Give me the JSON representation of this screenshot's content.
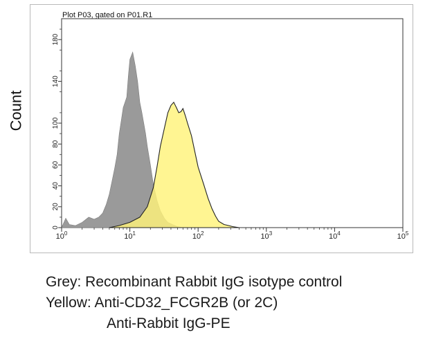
{
  "chart_data": {
    "type": "area",
    "title": "Plot P03, gated on P01.R1",
    "xlabel": "",
    "ylabel": "Count",
    "xscale": "log",
    "xlim": [
      1,
      100000
    ],
    "ylim": [
      0,
      200
    ],
    "xticks": [
      1,
      10,
      100,
      1000,
      10000,
      100000
    ],
    "xtick_labels": [
      {
        "base": "10",
        "exp": "0"
      },
      {
        "base": "10",
        "exp": "1"
      },
      {
        "base": "10",
        "exp": "2"
      },
      {
        "base": "10",
        "exp": "3"
      },
      {
        "base": "10",
        "exp": "4"
      },
      {
        "base": "10",
        "exp": "5"
      }
    ],
    "yticks": [
      0,
      20,
      40,
      60,
      80,
      100,
      140,
      180
    ],
    "ytick_labels": [
      "0",
      "20",
      "40",
      "60",
      "80",
      "100",
      "140",
      "180"
    ],
    "grid": false,
    "series": [
      {
        "name": "Grey",
        "color": "#9a9a9a",
        "x": [
          1,
          1.15,
          1.3,
          1.6,
          2,
          2.5,
          3,
          3.5,
          4,
          4.5,
          5,
          5.5,
          6,
          6.5,
          7,
          7.5,
          8,
          8.5,
          9,
          9.5,
          10,
          11,
          12,
          13,
          14,
          15,
          16,
          17,
          18,
          20,
          22,
          25,
          28,
          32,
          36,
          42,
          50,
          60
        ],
        "y": [
          0,
          9,
          3,
          2,
          5,
          10,
          8,
          10,
          14,
          22,
          32,
          45,
          57,
          70,
          90,
          103,
          115,
          120,
          125,
          145,
          161,
          168,
          155,
          140,
          120,
          110,
          100,
          90,
          78,
          60,
          42,
          26,
          16,
          9,
          5,
          3,
          1,
          0
        ]
      },
      {
        "name": "Yellow",
        "color": "#fff37a",
        "x": [
          5,
          7,
          10,
          14,
          18,
          22,
          25,
          28,
          32,
          36,
          40,
          44,
          48,
          52,
          56,
          60,
          65,
          70,
          80,
          90,
          100,
          120,
          140,
          160,
          180,
          200,
          240,
          280,
          320,
          400
        ],
        "y": [
          0,
          2,
          5,
          10,
          20,
          38,
          58,
          78,
          95,
          110,
          117,
          120,
          115,
          110,
          111,
          114,
          107,
          100,
          88,
          72,
          58,
          42,
          28,
          18,
          11,
          6,
          3,
          2,
          1,
          0
        ]
      }
    ],
    "legend": [
      "Grey: Recombinant Rabbit IgG isotype control",
      "Yellow: Anti-CD32_FCGR2B (or 2C)",
      "Anti-Rabbit IgG-PE"
    ]
  }
}
